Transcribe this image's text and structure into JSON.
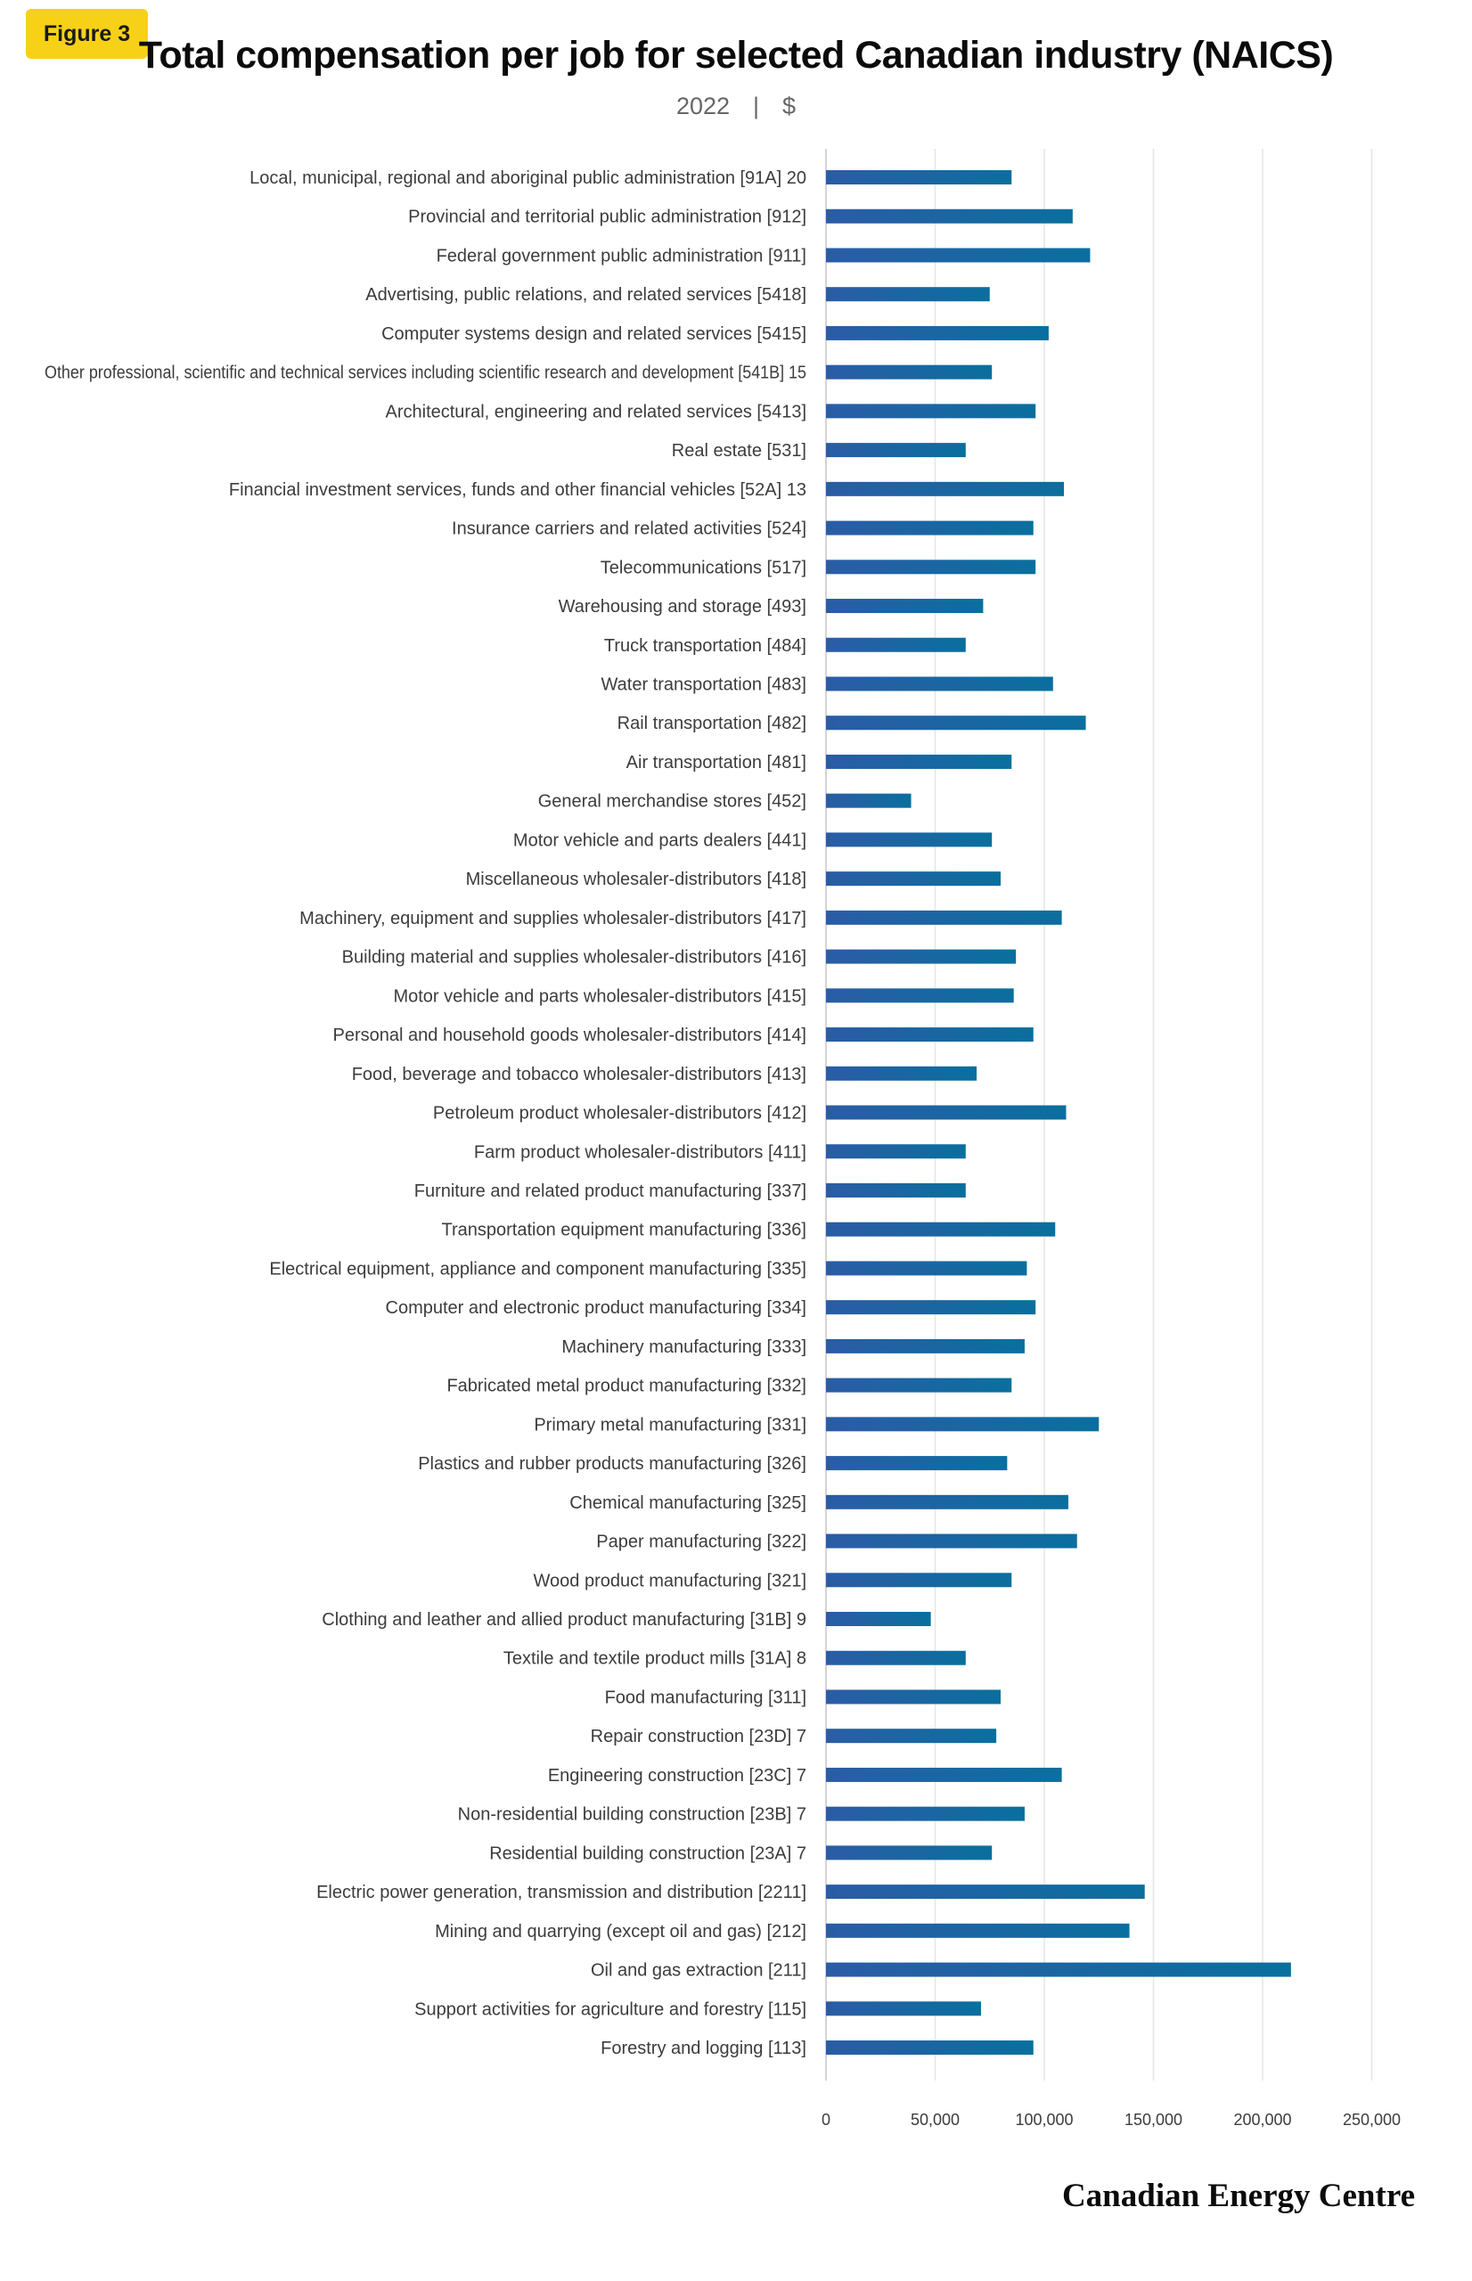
{
  "badge": "Figure 3",
  "brand": "Canadian Energy Centre",
  "colors": {
    "bar_start": "#2b5ca6",
    "bar_end": "#0a6f9e",
    "badge": "#f7d117",
    "grid": "#e6e6e6"
  },
  "chart_data": {
    "type": "bar",
    "orientation": "horizontal",
    "title": "Total compensation per job for selected Canadian industry (NAICS)",
    "subtitle_year": "2022",
    "subtitle_unit": "$",
    "xlim": [
      0,
      250000
    ],
    "xticks": [
      0,
      50000,
      100000,
      150000,
      200000,
      250000
    ],
    "xtick_labels": [
      "0",
      "50,000",
      "100,000",
      "150,000",
      "200,000",
      "250,000"
    ],
    "grid": "vertical",
    "categories": [
      "Local, municipal, regional and aboriginal public administration [91A] 20",
      "Provincial and territorial public administration [912]",
      "Federal government public administration [911]",
      "Advertising, public relations, and related services [5418]",
      "Computer systems design and related services [5415]",
      "Other professional, scientific and technical services including scientific research and development [541B] 15",
      "Architectural, engineering and related services [5413]",
      "Real estate [531]",
      "Financial investment services, funds and other financial vehicles [52A] 13",
      "Insurance carriers and related activities [524]",
      "Telecommunications [517]",
      "Warehousing and storage [493]",
      "Truck transportation [484]",
      "Water transportation [483]",
      "Rail transportation [482]",
      "Air transportation [481]",
      "General merchandise stores [452]",
      "Motor vehicle and parts dealers [441]",
      "Miscellaneous wholesaler-distributors [418]",
      "Machinery, equipment and supplies wholesaler-distributors [417]",
      "Building material and supplies wholesaler-distributors [416]",
      "Motor vehicle and parts wholesaler-distributors [415]",
      "Personal and household goods wholesaler-distributors [414]",
      "Food, beverage and tobacco wholesaler-distributors [413]",
      "Petroleum product wholesaler-distributors [412]",
      "Farm product wholesaler-distributors [411]",
      "Furniture and related product manufacturing [337]",
      "Transportation equipment manufacturing [336]",
      "Electrical equipment, appliance and component manufacturing [335]",
      "Computer and electronic product manufacturing [334]",
      "Machinery manufacturing [333]",
      "Fabricated metal product manufacturing [332]",
      "Primary metal manufacturing [331]",
      "Plastics and rubber products manufacturing [326]",
      "Chemical manufacturing [325]",
      "Paper manufacturing [322]",
      "Wood product manufacturing [321]",
      "Clothing and leather and allied product manufacturing [31B] 9",
      "Textile and textile product mills [31A] 8",
      "Food manufacturing [311]",
      "Repair construction [23D] 7",
      "Engineering construction [23C] 7",
      "Non-residential building construction [23B] 7",
      "Residential building construction [23A] 7",
      "Electric power generation, transmission and distribution [2211]",
      "Mining and quarrying (except oil and gas) [212]",
      "Oil and gas extraction [211]",
      "Support activities for agriculture and forestry [115]",
      "Forestry and logging [113]"
    ],
    "values": [
      85000,
      113000,
      121000,
      75000,
      102000,
      76000,
      96000,
      64000,
      109000,
      95000,
      96000,
      72000,
      64000,
      104000,
      119000,
      85000,
      39000,
      76000,
      80000,
      108000,
      87000,
      86000,
      95000,
      69000,
      110000,
      64000,
      64000,
      105000,
      92000,
      96000,
      91000,
      85000,
      125000,
      83000,
      111000,
      115000,
      85000,
      48000,
      64000,
      80000,
      78000,
      108000,
      91000,
      76000,
      146000,
      139000,
      213000,
      71000,
      95000
    ]
  }
}
